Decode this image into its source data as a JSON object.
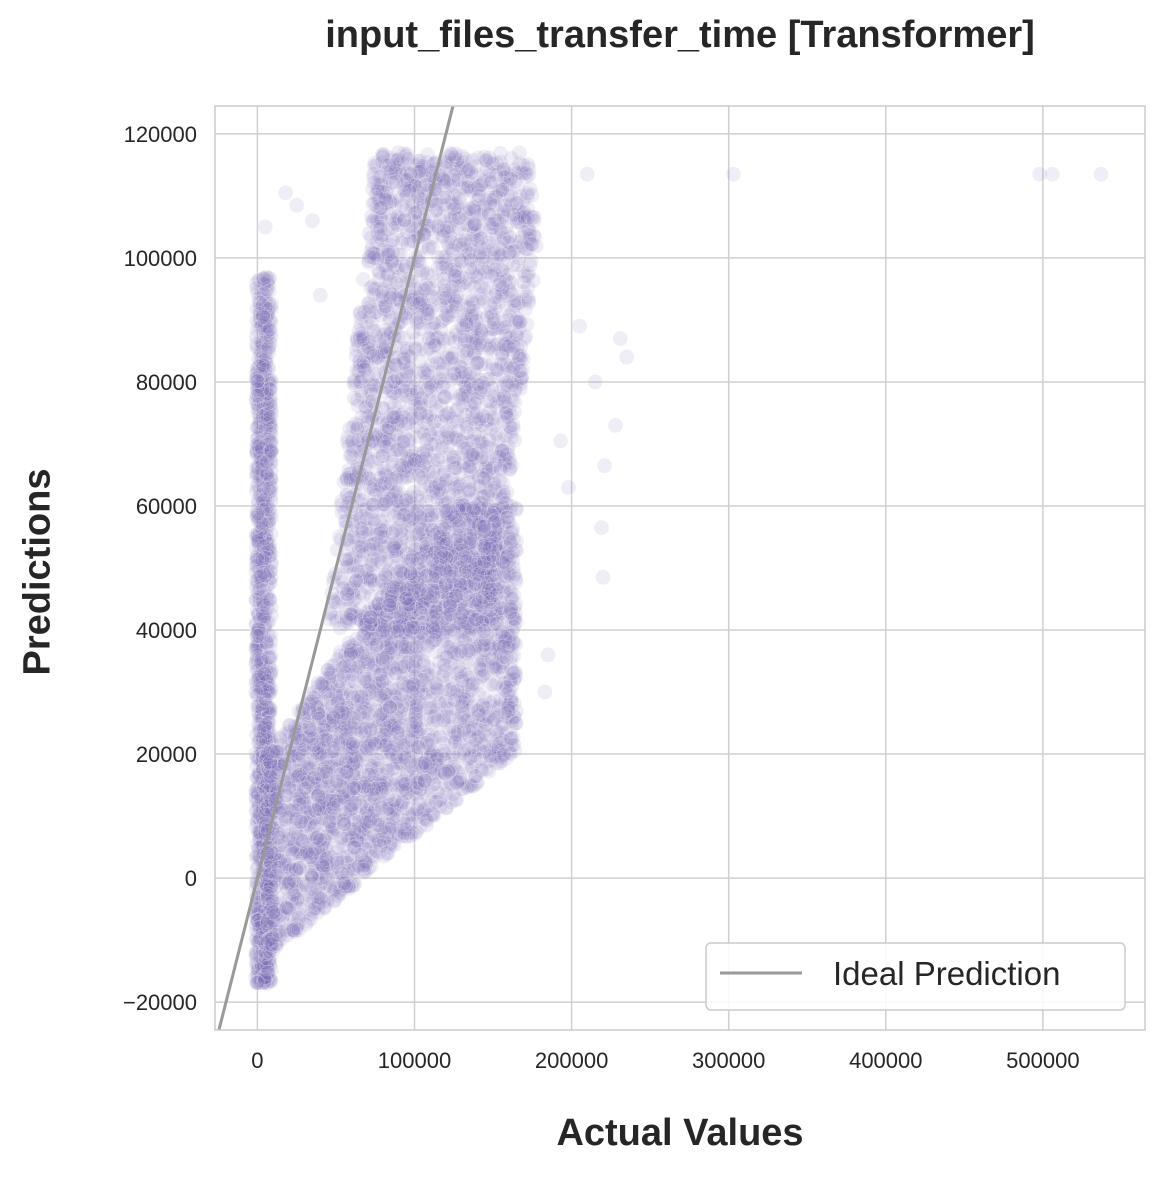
{
  "chart_data": {
    "type": "scatter",
    "title": "input_files_transfer_time [Transformer]",
    "xlabel": "Actual Values",
    "ylabel": "Predictions",
    "xlim": [
      -27000,
      565000
    ],
    "ylim": [
      -24500,
      124500
    ],
    "x_ticks": [
      0,
      100000,
      200000,
      300000,
      400000,
      500000
    ],
    "x_tick_labels": [
      "0",
      "100000",
      "200000",
      "300000",
      "400000",
      "500000"
    ],
    "y_ticks": [
      -20000,
      0,
      20000,
      40000,
      60000,
      80000,
      100000,
      120000
    ],
    "y_tick_labels": [
      "−20000",
      "0",
      "20000",
      "40000",
      "60000",
      "80000",
      "100000",
      "120000"
    ],
    "grid": true,
    "legend": {
      "position": "bottom-right",
      "entries": [
        "Ideal Prediction"
      ]
    },
    "colors": {
      "points": "#7e6fb8",
      "ideal_line": "#999999",
      "grid": "#d0d0d0",
      "spine": "#cccccc"
    },
    "ideal_line": {
      "label": "Ideal Prediction",
      "slope": 1,
      "intercept": 0
    },
    "series": [
      {
        "point_alpha": 0.12,
        "dense_regions": [
          {
            "label": "near-zero vertical band",
            "x_range": [
              -1000,
              9000
            ],
            "y_range": [
              -17000,
              97000
            ]
          },
          {
            "label": "main wedge upper",
            "x_range": [
              40000,
              190000
            ],
            "y_range": [
              40000,
              117000
            ]
          },
          {
            "label": "main wedge lower",
            "x_range": [
              5000,
              165000
            ],
            "y_range": [
              -12000,
              40000
            ]
          }
        ],
        "points": [
          {
            "x": 303000,
            "y": 113500
          },
          {
            "x": 498000,
            "y": 113500
          },
          {
            "x": 506000,
            "y": 113500
          },
          {
            "x": 537000,
            "y": 113500
          },
          {
            "x": 235000,
            "y": 84000
          },
          {
            "x": 231000,
            "y": 87000
          },
          {
            "x": 228000,
            "y": 73000
          },
          {
            "x": 221000,
            "y": 66500
          },
          {
            "x": 219000,
            "y": 56500
          },
          {
            "x": 220000,
            "y": 48500
          },
          {
            "x": 198000,
            "y": 63000
          },
          {
            "x": 193000,
            "y": 70500
          },
          {
            "x": 185000,
            "y": 36000
          },
          {
            "x": 183000,
            "y": 30000
          },
          {
            "x": 162000,
            "y": 45000
          },
          {
            "x": 210000,
            "y": 113500
          },
          {
            "x": 205000,
            "y": 89000
          },
          {
            "x": 215000,
            "y": 80000
          },
          {
            "x": 40000,
            "y": 94000
          },
          {
            "x": 18000,
            "y": 110500
          },
          {
            "x": 25000,
            "y": 108500
          },
          {
            "x": 35000,
            "y": 106000
          },
          {
            "x": 5000,
            "y": 105000
          }
        ]
      }
    ]
  }
}
